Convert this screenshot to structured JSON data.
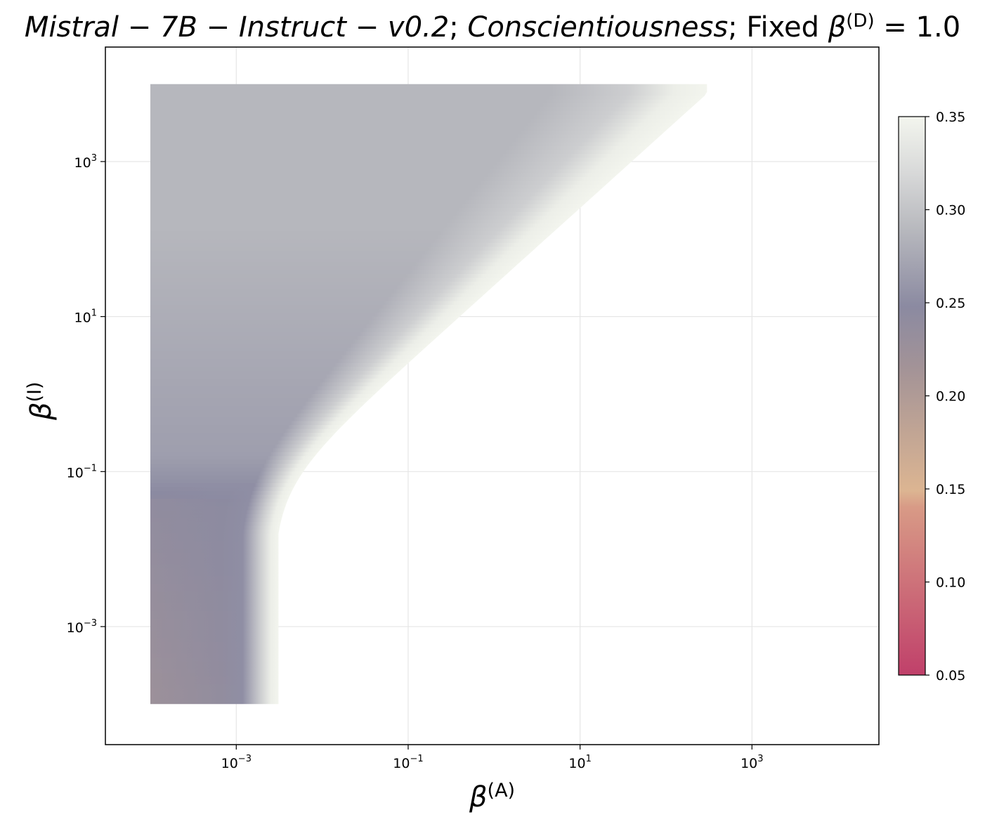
{
  "chart_data": {
    "type": "heatmap",
    "title": {
      "model": "Mistral − 7B − Instruct − v0.2",
      "sep1": "; ",
      "trait": "Conscientiousness",
      "sep2": "; ",
      "fixed_prefix": "Fixed ",
      "fixed_symbol": "β",
      "fixed_sup": "(D)",
      "fixed_value": " = 1.0"
    },
    "xlabel": {
      "symbol": "β",
      "sup": "(A)"
    },
    "ylabel": {
      "symbol": "β",
      "sup": "(I)"
    },
    "x_scale": "log",
    "y_scale": "log",
    "xlim": [
      3e-05,
      30000.0
    ],
    "ylim": [
      3e-05,
      30000.0
    ],
    "x_ticks": [
      {
        "value": 0.001,
        "base": "10",
        "exp": "−3"
      },
      {
        "value": 0.1,
        "base": "10",
        "exp": "−1"
      },
      {
        "value": 10,
        "base": "10",
        "exp": "1"
      },
      {
        "value": 1000,
        "base": "10",
        "exp": "3"
      }
    ],
    "y_ticks": [
      {
        "value": 0.001,
        "base": "10",
        "exp": "−3"
      },
      {
        "value": 0.1,
        "base": "10",
        "exp": "−1"
      },
      {
        "value": 10,
        "base": "10",
        "exp": "1"
      },
      {
        "value": 1000,
        "base": "10",
        "exp": "3"
      }
    ],
    "grid": true,
    "data_x_range": [
      0.0001,
      300
    ],
    "data_y_range": [
      0.0001,
      10000
    ],
    "colorbar": {
      "min": 0.05,
      "max": 0.35,
      "ticks": [
        "0.35",
        "0.30",
        "0.25",
        "0.20",
        "0.15",
        "0.10",
        "0.05"
      ],
      "colors": [
        "#c0406a",
        "#d89a86",
        "#dcb592",
        "#a39397",
        "#8b8aa1",
        "#b8b9be",
        "#d8d9d9",
        "#f3f5ee"
      ],
      "stops": [
        0.0,
        0.3,
        0.33,
        0.55,
        0.66,
        0.8,
        0.9,
        1.0
      ]
    },
    "value_region": {
      "description_values": [
        {
          "x": 0.0001,
          "y": 0.0001,
          "value": 0.225
        },
        {
          "x": 0.001,
          "y": 0.001,
          "value": 0.25
        },
        {
          "x": 0.0001,
          "y": 0.1,
          "value": 0.26
        },
        {
          "x": 0.0001,
          "y": 10000,
          "value": 0.29
        },
        {
          "x": 0.003,
          "y": 0.001,
          "value": 0.35
        },
        {
          "x": 300,
          "y": 10000,
          "value": 0.35
        }
      ]
    }
  }
}
